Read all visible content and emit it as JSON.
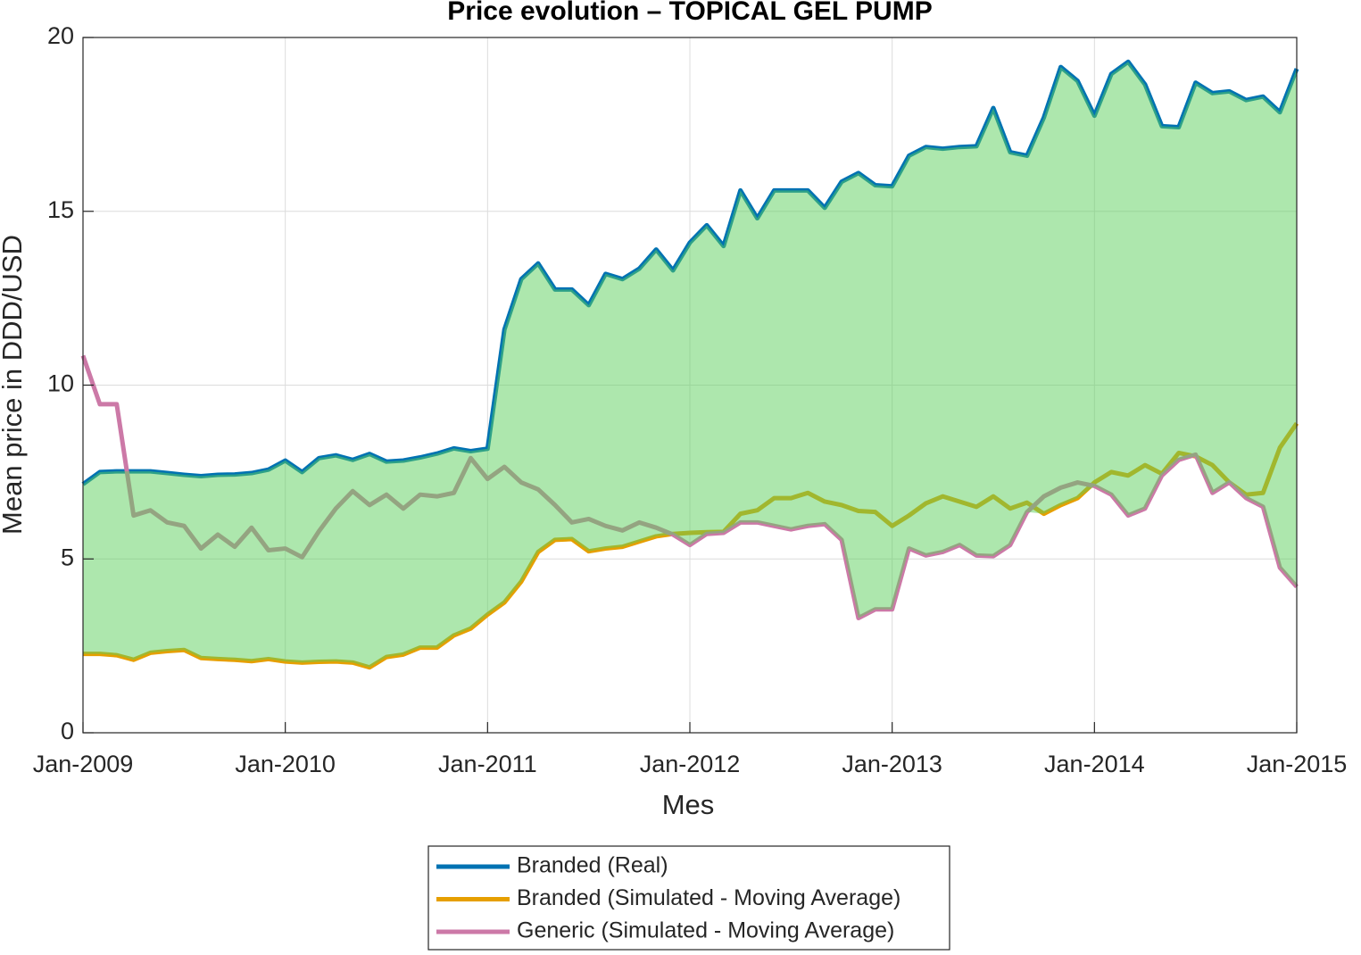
{
  "chart_data": {
    "type": "line",
    "title": "Price evolution – TOPICAL GEL PUMP",
    "xlabel": "Mes",
    "ylabel": "Mean price in DDD/USD",
    "x": [
      "2009-01",
      "2009-02",
      "2009-03",
      "2009-04",
      "2009-05",
      "2009-06",
      "2009-07",
      "2009-08",
      "2009-09",
      "2009-10",
      "2009-11",
      "2009-12",
      "2010-01",
      "2010-02",
      "2010-03",
      "2010-04",
      "2010-05",
      "2010-06",
      "2010-07",
      "2010-08",
      "2010-09",
      "2010-10",
      "2010-11",
      "2010-12",
      "2011-01",
      "2011-02",
      "2011-03",
      "2011-04",
      "2011-05",
      "2011-06",
      "2011-07",
      "2011-08",
      "2011-09",
      "2011-10",
      "2011-11",
      "2011-12",
      "2012-01",
      "2012-02",
      "2012-03",
      "2012-04",
      "2012-05",
      "2012-06",
      "2012-07",
      "2012-08",
      "2012-09",
      "2012-10",
      "2012-11",
      "2012-12",
      "2013-01",
      "2013-02",
      "2013-03",
      "2013-04",
      "2013-05",
      "2013-06",
      "2013-07",
      "2013-08",
      "2013-09",
      "2013-10",
      "2013-11",
      "2013-12",
      "2014-01",
      "2014-02",
      "2014-03",
      "2014-04",
      "2014-05",
      "2014-06",
      "2014-07",
      "2014-08",
      "2014-09",
      "2014-10",
      "2014-11",
      "2014-12",
      "2015-01"
    ],
    "series": [
      {
        "name": "Branded (Real)",
        "color": "#0072B2",
        "values": [
          7.15,
          7.5,
          7.52,
          7.52,
          7.52,
          7.47,
          7.42,
          7.38,
          7.42,
          7.43,
          7.47,
          7.57,
          7.83,
          7.5,
          7.9,
          7.98,
          7.85,
          8.02,
          7.8,
          7.83,
          7.92,
          8.03,
          8.18,
          8.1,
          8.17,
          11.6,
          13.05,
          13.5,
          12.75,
          12.75,
          12.3,
          13.2,
          13.05,
          13.35,
          13.9,
          13.3,
          14.1,
          14.6,
          14.0,
          15.6,
          14.8,
          15.6,
          15.6,
          15.6,
          15.1,
          15.85,
          16.1,
          15.75,
          15.72,
          16.6,
          16.85,
          16.8,
          16.85,
          16.87,
          17.97,
          16.7,
          16.6,
          17.7,
          19.15,
          18.75,
          17.75,
          18.95,
          19.3,
          18.65,
          17.45,
          17.42,
          18.7,
          18.4,
          18.45,
          18.2,
          18.3,
          17.85,
          19.1
        ]
      },
      {
        "name": "Branded (Simulated - Moving Average)",
        "color": "#E69F00",
        "values": [
          2.27,
          2.27,
          2.23,
          2.1,
          2.3,
          2.35,
          2.38,
          2.15,
          2.12,
          2.1,
          2.06,
          2.12,
          2.05,
          2.02,
          2.04,
          2.05,
          2.02,
          1.88,
          2.18,
          2.25,
          2.45,
          2.45,
          2.8,
          3.0,
          3.4,
          3.75,
          4.35,
          5.2,
          5.55,
          5.57,
          5.22,
          5.3,
          5.35,
          5.5,
          5.65,
          5.72,
          5.75,
          5.77,
          5.78,
          6.3,
          6.4,
          6.75,
          6.75,
          6.9,
          6.65,
          6.55,
          6.38,
          6.35,
          5.95,
          6.25,
          6.6,
          6.8,
          6.65,
          6.5,
          6.8,
          6.45,
          6.62,
          6.3,
          6.55,
          6.75,
          7.2,
          7.5,
          7.4,
          7.7,
          7.45,
          8.05,
          7.95,
          7.7,
          7.2,
          6.85,
          6.9,
          8.2,
          8.9
        ]
      },
      {
        "name": "Generic (Simulated - Moving Average)",
        "color": "#CC79A7",
        "values": [
          10.85,
          9.45,
          9.45,
          6.25,
          6.4,
          6.05,
          5.95,
          5.3,
          5.7,
          5.35,
          5.9,
          5.25,
          5.3,
          5.05,
          5.8,
          6.45,
          6.95,
          6.55,
          6.85,
          6.45,
          6.85,
          6.8,
          6.9,
          7.9,
          7.3,
          7.65,
          7.2,
          7.0,
          6.55,
          6.05,
          6.15,
          5.95,
          5.82,
          6.05,
          5.9,
          5.7,
          5.4,
          5.72,
          5.75,
          6.05,
          6.05,
          5.95,
          5.85,
          5.95,
          6.0,
          5.55,
          3.3,
          3.55,
          3.55,
          5.3,
          5.1,
          5.2,
          5.4,
          5.1,
          5.08,
          5.4,
          6.35,
          6.8,
          7.05,
          7.2,
          7.1,
          6.85,
          6.25,
          6.45,
          7.4,
          7.85,
          8.0,
          6.9,
          7.2,
          6.75,
          6.5,
          4.75,
          4.2
        ]
      }
    ],
    "xlim": [
      "2009-01",
      "2015-01"
    ],
    "xticks": [
      {
        "value": "2009-01",
        "label": "Jan-2009"
      },
      {
        "value": "2010-01",
        "label": "Jan-2010"
      },
      {
        "value": "2011-01",
        "label": "Jan-2011"
      },
      {
        "value": "2012-01",
        "label": "Jan-2012"
      },
      {
        "value": "2013-01",
        "label": "Jan-2013"
      },
      {
        "value": "2014-01",
        "label": "Jan-2014"
      },
      {
        "value": "2015-01",
        "label": "Jan-2015"
      }
    ],
    "ylim": [
      0,
      20
    ],
    "yticks": [
      0,
      5,
      10,
      15,
      20
    ],
    "grid": true,
    "fill_color": "#5ccf5c",
    "legend": "bottom"
  }
}
